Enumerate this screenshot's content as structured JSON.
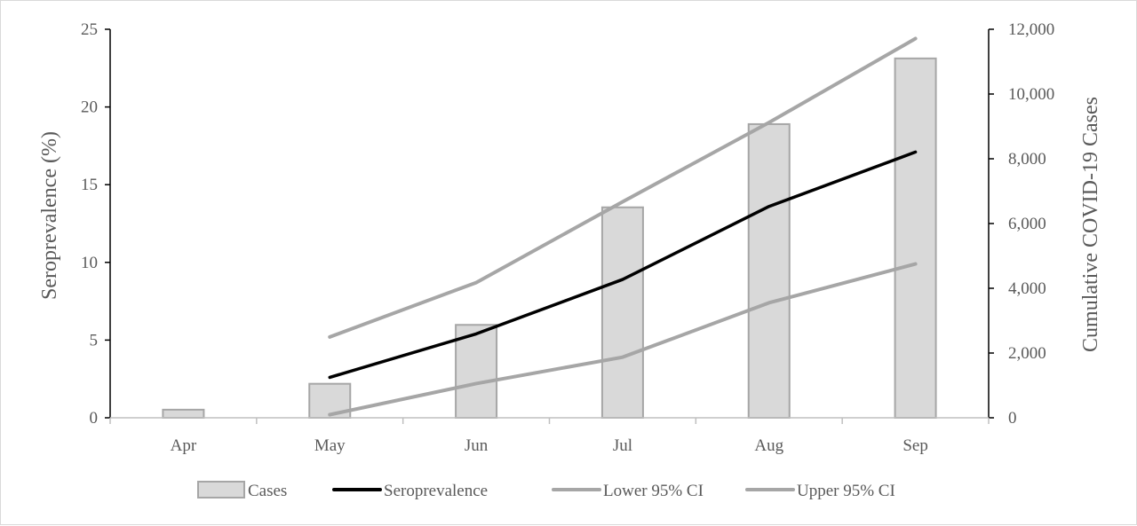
{
  "chart_data": {
    "type": "bar",
    "categories": [
      "Apr",
      "May",
      "Jun",
      "Jul",
      "Aug",
      "Sep"
    ],
    "ylabel_left": "Seroprevalence (%)",
    "ylabel_right": "Cumulative COVID-19 Cases",
    "ylim_left": [
      0,
      25
    ],
    "ylim_right": [
      0,
      12000
    ],
    "yticks_left": [
      "0",
      "5",
      "10",
      "15",
      "20",
      "25"
    ],
    "yticks_right": [
      "0",
      "2,000",
      "4,000",
      "6,000",
      "8,000",
      "10,000",
      "12,000"
    ],
    "grid": false,
    "legend_position": "bottom",
    "series": [
      {
        "name": "Cases",
        "kind": "bar",
        "axis": "right",
        "color": "#d9d9d9",
        "edge_color": "#a6a6a6",
        "values": [
          250,
          1050,
          2870,
          6500,
          9070,
          11100
        ]
      },
      {
        "name": "Seroprevalence",
        "kind": "line",
        "axis": "left",
        "color": "#000000",
        "values": [
          null,
          2.6,
          5.4,
          8.9,
          13.6,
          17.1
        ]
      },
      {
        "name": "Lower 95% CI",
        "kind": "line",
        "axis": "left",
        "color": "#a6a6a6",
        "values": [
          null,
          0.2,
          2.2,
          3.9,
          7.4,
          9.9
        ]
      },
      {
        "name": "Upper 95% CI",
        "kind": "line",
        "axis": "left",
        "color": "#a6a6a6",
        "values": [
          null,
          5.2,
          8.7,
          13.9,
          19.0,
          24.4
        ]
      }
    ]
  }
}
